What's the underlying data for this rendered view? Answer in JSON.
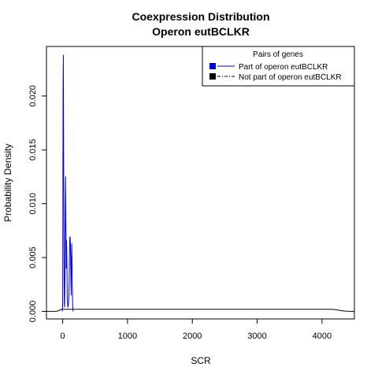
{
  "chart_data": {
    "type": "line",
    "title": "Coexpression Distribution",
    "subtitle": "Operon eutBCLKR",
    "xlabel": "SCR",
    "ylabel": "Probability Density",
    "xlim": [
      -250,
      4500
    ],
    "ylim": [
      -0.0007,
      0.0246
    ],
    "xticks": [
      0,
      1000,
      2000,
      3000,
      4000
    ],
    "xtick_labels": [
      "0",
      "1000",
      "2000",
      "3000",
      "4000"
    ],
    "yticks": [
      0.0,
      0.005,
      0.01,
      0.015,
      0.02
    ],
    "ytick_labels": [
      "0.000",
      "0.005",
      "0.010",
      "0.015",
      "0.020"
    ],
    "grid": false,
    "legend": {
      "title": "Pairs of genes",
      "position": "top-right",
      "entries": [
        {
          "label": "Part of operon eutBCLKR",
          "color": "#0000cc",
          "linestyle": "solid"
        },
        {
          "label": "Not part of operon eutBCLKR",
          "color": "#000000",
          "linestyle": "dashdot"
        }
      ]
    },
    "series": [
      {
        "name": "Part of operon eutBCLKR",
        "color": "#0000cc",
        "x": [
          -5,
          0,
          3,
          6,
          10,
          15,
          20,
          25,
          30,
          35,
          40,
          45,
          50,
          55,
          60,
          65,
          70,
          75,
          80,
          85,
          90,
          95,
          100,
          105,
          110,
          115,
          120,
          125,
          130,
          135,
          140,
          145,
          150,
          155,
          160
        ],
        "y": [
          0.0,
          0.0005,
          0.009,
          0.0205,
          0.0238,
          0.015,
          0.005,
          0.0008,
          0.0004,
          0.0035,
          0.0093,
          0.0125,
          0.0085,
          0.004,
          0.0066,
          0.0048,
          0.0015,
          0.0008,
          0.0004,
          0.0005,
          0.0007,
          0.0012,
          0.0028,
          0.0052,
          0.0069,
          0.0069,
          0.006,
          0.004,
          0.0015,
          0.0045,
          0.0063,
          0.0045,
          0.0018,
          0.0005,
          0.0
        ]
      },
      {
        "name": "Not part of operon eutBCLKR",
        "color": "#000000",
        "x": [
          -250,
          -200,
          -150,
          -120,
          -100,
          -80,
          -60,
          -40,
          -20,
          0,
          100,
          200,
          500,
          1000,
          1500,
          2000,
          2500,
          3000,
          3500,
          4000,
          4100,
          4150,
          4200,
          4250,
          4300,
          4350,
          4400,
          4450,
          4500
        ],
        "y": [
          0.0,
          0.0,
          0.0,
          0.0,
          1e-05,
          3e-05,
          8e-05,
          0.00014,
          0.00019,
          0.0002,
          0.0002,
          0.0002,
          0.0002,
          0.0002,
          0.0002,
          0.0002,
          0.0002,
          0.0002,
          0.0002,
          0.0002,
          0.0002,
          0.0002,
          0.00017,
          0.00012,
          7e-05,
          3e-05,
          1e-05,
          0.0,
          0.0
        ]
      }
    ]
  }
}
